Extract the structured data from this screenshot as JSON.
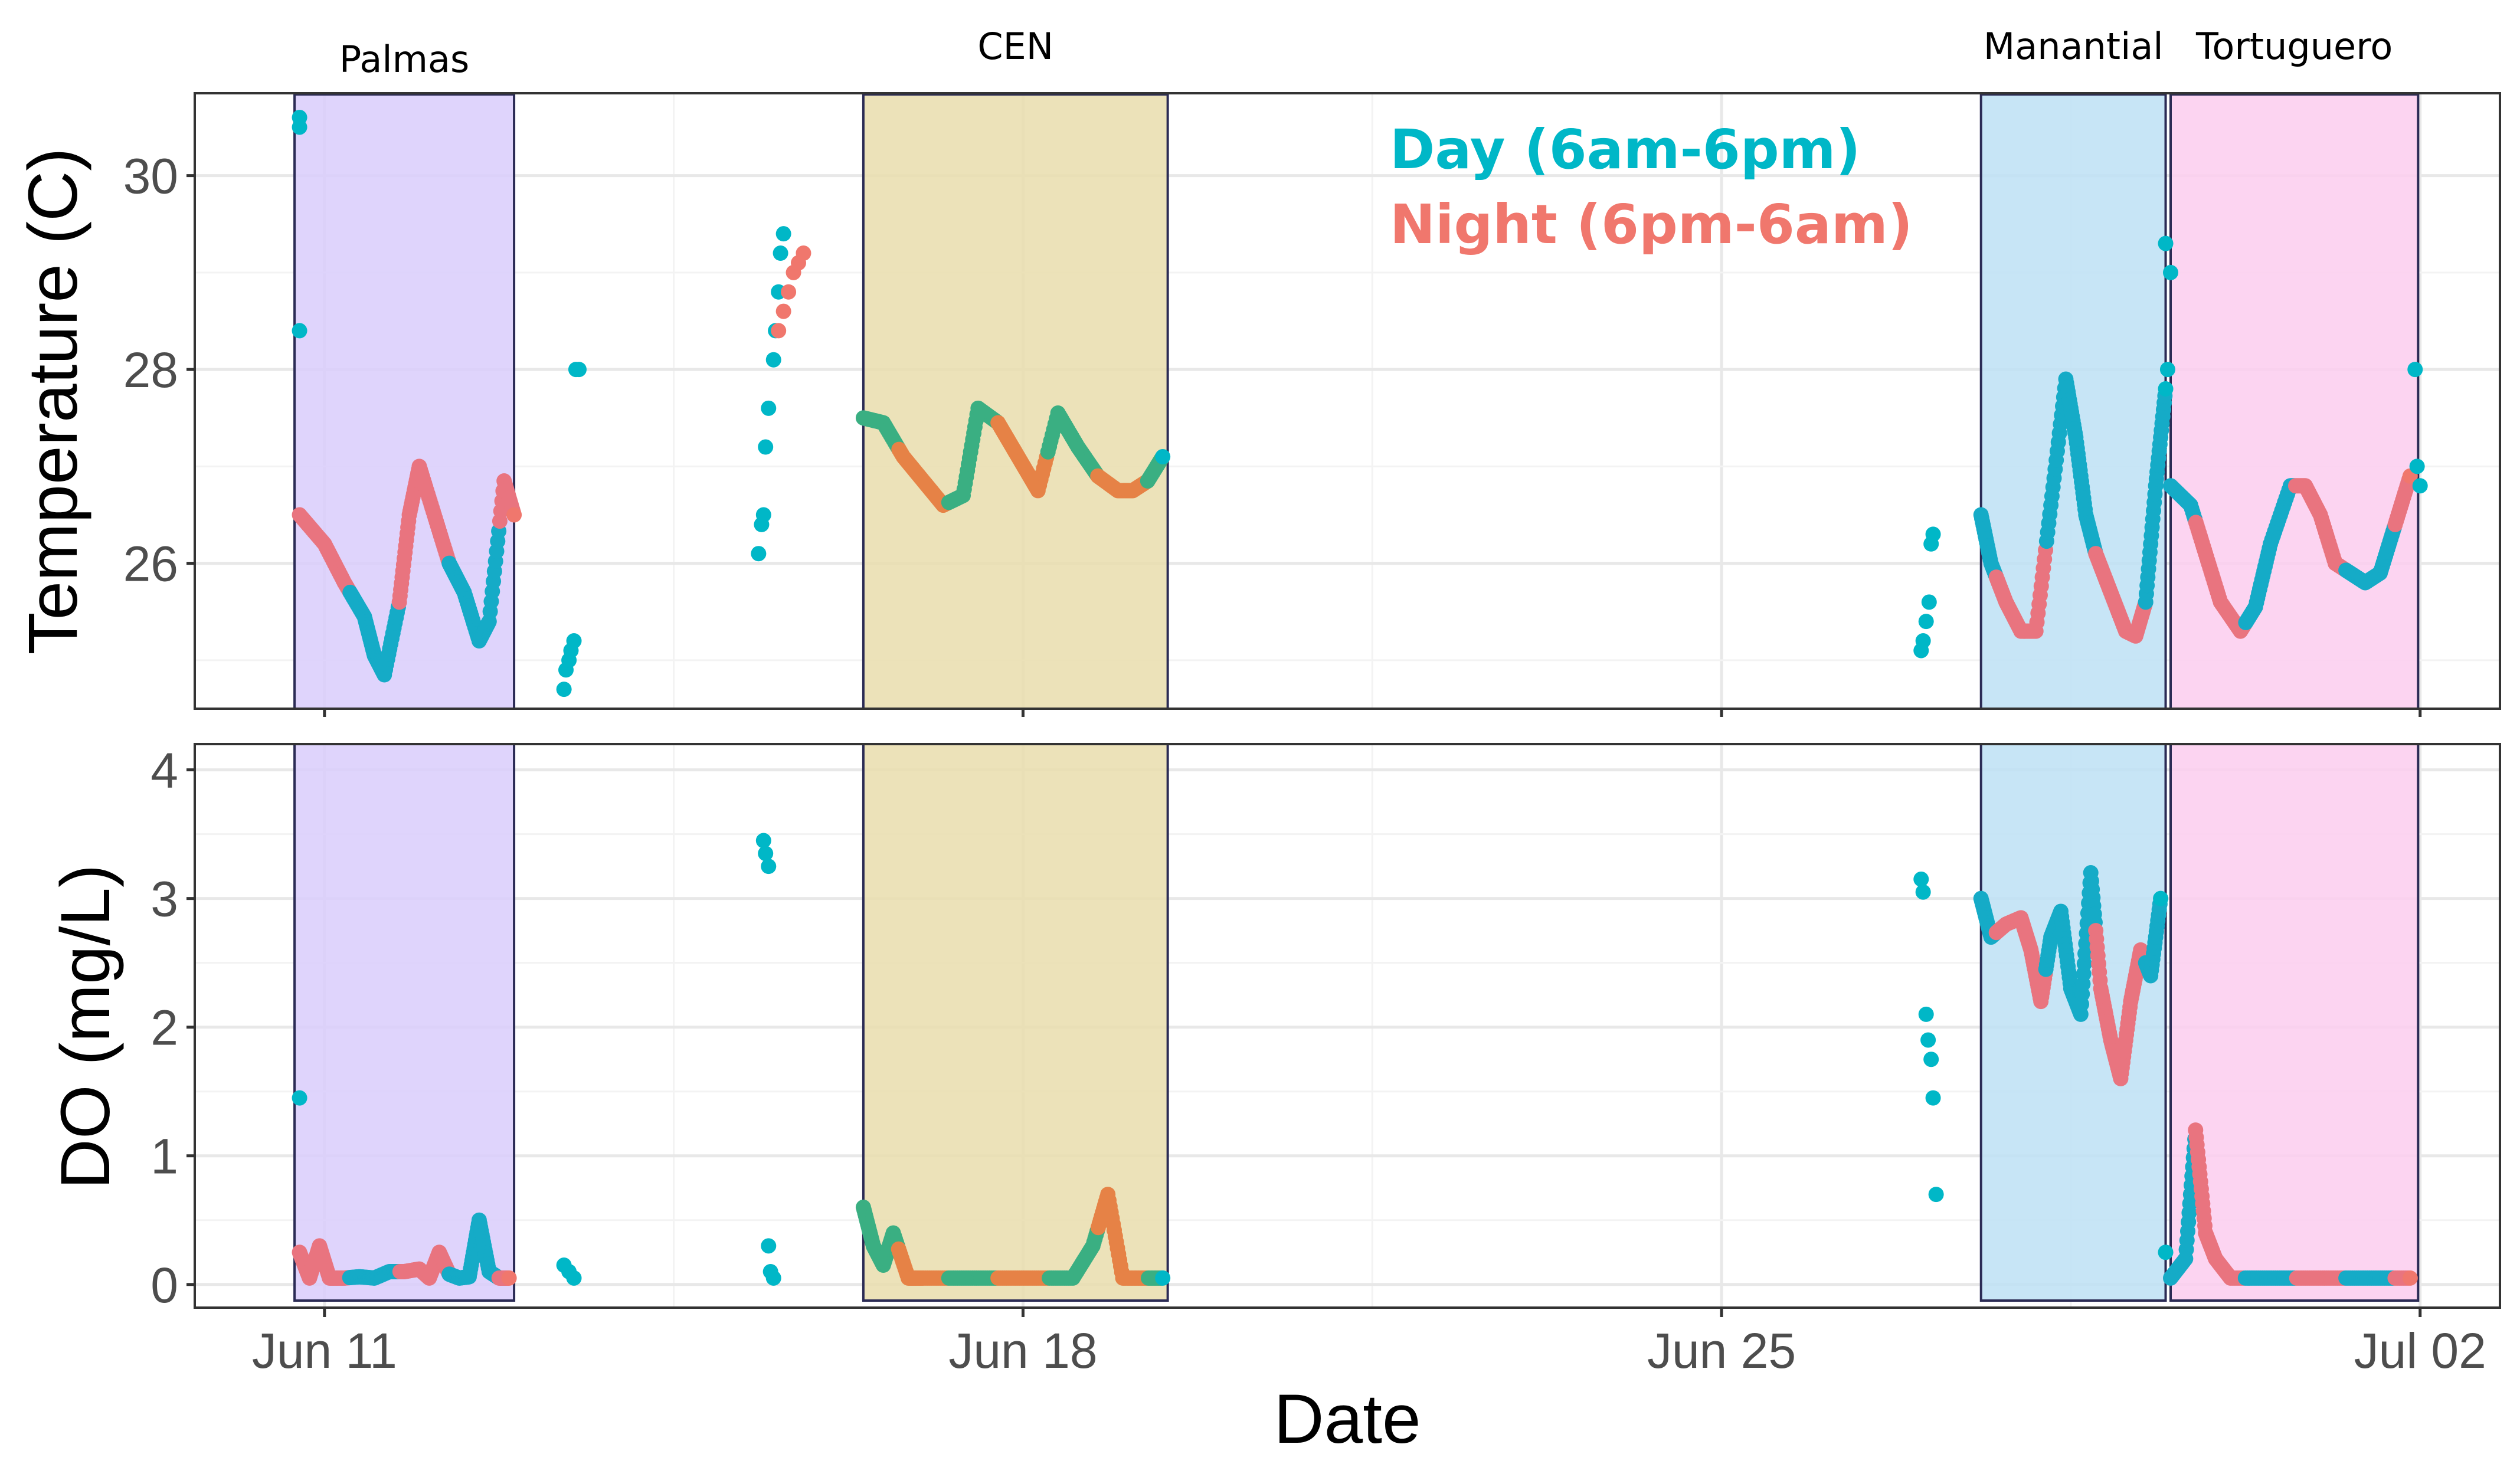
{
  "chart_data": {
    "type": "scatter",
    "xlabel": "Date",
    "x_ticks": [
      {
        "label": "Jun 11",
        "day": 11
      },
      {
        "label": "Jun 18",
        "day": 18
      },
      {
        "label": "Jun 25",
        "day": 25
      },
      {
        "label": "Jul 02",
        "day": 32
      }
    ],
    "xlim": [
      9.7,
      32.8
    ],
    "legend": [
      {
        "label": "Day (6am-6pm)",
        "color": "#00b7c7"
      },
      {
        "label": "Night (6pm-6am)",
        "color": "#f0776d"
      }
    ],
    "sites": [
      {
        "name": "Palmas",
        "start": 10.7,
        "end": 12.9,
        "color": "#d9ccfb"
      },
      {
        "name": "CEN",
        "start": 16.4,
        "end": 19.45,
        "color": "#e9ddad"
      },
      {
        "name": "Manantial",
        "start": 27.6,
        "end": 29.45,
        "color": "#bde1f5"
      },
      {
        "name": "Tortuguero",
        "start": 29.5,
        "end": 31.98,
        "color": "#fbcdef"
      }
    ],
    "panels": [
      {
        "id": "temperature",
        "ylabel": "Temperature (C)",
        "ylim": [
          24.5,
          30.85
        ],
        "y_ticks": [
          26,
          28,
          30
        ],
        "series": {
          "Palmas": {
            "x": [
              10.75,
              11.0,
              11.2,
              11.4,
              11.5,
              11.6,
              11.75,
              11.85,
              11.95,
              12.1,
              12.25,
              12.4,
              12.55,
              12.65,
              12.8,
              12.9
            ],
            "y": [
              26.5,
              26.2,
              25.8,
              25.45,
              25.05,
              24.85,
              25.6,
              26.5,
              27.0,
              26.5,
              26.0,
              25.7,
              25.2,
              25.4,
              26.85,
              26.5
            ]
          },
          "CEN": {
            "x": [
              16.4,
              16.6,
              16.8,
              17.0,
              17.2,
              17.4,
              17.55,
              17.75,
              17.95,
              18.15,
              18.35,
              18.55,
              18.75,
              18.95,
              19.1,
              19.25,
              19.4
            ],
            "y": [
              27.5,
              27.45,
              27.1,
              26.85,
              26.6,
              26.7,
              27.6,
              27.45,
              27.1,
              26.75,
              27.55,
              27.2,
              26.9,
              26.75,
              26.75,
              26.85,
              27.1
            ]
          },
          "Manantial": {
            "x": [
              27.6,
              27.7,
              27.85,
              28.0,
              28.15,
              28.3,
              28.45,
              28.55,
              28.65,
              28.75,
              28.9,
              29.05,
              29.15,
              29.25,
              29.35,
              29.45
            ],
            "y": [
              26.5,
              26.0,
              25.6,
              25.3,
              25.3,
              26.6,
              27.9,
              27.3,
              26.5,
              26.1,
              25.7,
              25.3,
              25.25,
              25.6,
              26.8,
              27.8
            ]
          },
          "Tortuguero": {
            "x": [
              29.5,
              29.7,
              29.85,
              30.0,
              30.2,
              30.35,
              30.5,
              30.7,
              30.85,
              31.0,
              31.15,
              31.3,
              31.45,
              31.6,
              31.75,
              31.9
            ],
            "y": [
              26.8,
              26.6,
              26.1,
              25.6,
              25.3,
              25.55,
              26.2,
              26.8,
              26.8,
              26.5,
              26.0,
              25.9,
              25.8,
              25.9,
              26.4,
              26.9
            ]
          },
          "outside_day": {
            "x": [
              10.75,
              10.75,
              10.75,
              13.4,
              13.42,
              13.45,
              13.47,
              13.5,
              13.52,
              13.55,
              15.35,
              15.38,
              15.4,
              15.42,
              15.45,
              15.5,
              15.52,
              15.55,
              15.57,
              15.6,
              27.0,
              27.02,
              27.05,
              27.08,
              27.1,
              27.12,
              29.45,
              29.47,
              29.5,
              31.95,
              31.97,
              32.0
            ],
            "y": [
              30.6,
              30.5,
              28.4,
              24.7,
              24.9,
              25.0,
              25.1,
              25.2,
              28.0,
              28.0,
              26.1,
              26.4,
              26.5,
              27.2,
              27.6,
              28.1,
              28.4,
              28.8,
              29.2,
              29.4,
              25.1,
              25.2,
              25.4,
              25.6,
              26.2,
              26.3,
              29.3,
              28.0,
              29.0,
              28.0,
              27.0,
              26.8
            ]
          },
          "outside_night": {
            "x": [
              15.55,
              15.6,
              15.65,
              15.7,
              15.75,
              15.8
            ],
            "y": [
              28.4,
              28.6,
              28.8,
              29.0,
              29.1,
              29.2
            ]
          }
        }
      },
      {
        "id": "do",
        "ylabel": "DO (mg/L)",
        "ylim": [
          -0.18,
          4.2
        ],
        "y_ticks": [
          0,
          1,
          2,
          3,
          4
        ],
        "series": {
          "Palmas": {
            "x": [
              10.75,
              10.85,
              10.95,
              11.05,
              11.2,
              11.35,
              11.5,
              11.65,
              11.8,
              11.95,
              12.05,
              12.15,
              12.25,
              12.35,
              12.45,
              12.55,
              12.65,
              12.75,
              12.85
            ],
            "y": [
              0.25,
              0.05,
              0.3,
              0.05,
              0.05,
              0.06,
              0.05,
              0.1,
              0.1,
              0.12,
              0.05,
              0.25,
              0.08,
              0.05,
              0.06,
              0.5,
              0.1,
              0.05,
              0.05
            ]
          },
          "CEN": {
            "x": [
              16.4,
              16.5,
              16.6,
              16.7,
              16.85,
              17.0,
              17.3,
              17.6,
              17.9,
              18.2,
              18.5,
              18.7,
              18.85,
              19.0,
              19.2,
              19.4
            ],
            "y": [
              0.6,
              0.3,
              0.15,
              0.4,
              0.05,
              0.05,
              0.05,
              0.05,
              0.05,
              0.05,
              0.05,
              0.3,
              0.7,
              0.05,
              0.05,
              0.05
            ]
          },
          "Manantial": {
            "x": [
              27.6,
              27.7,
              27.85,
              28.0,
              28.1,
              28.2,
              28.3,
              28.4,
              28.5,
              28.6,
              28.7,
              28.8,
              28.9,
              29.0,
              29.1,
              29.2,
              29.3,
              29.4
            ],
            "y": [
              3.0,
              2.7,
              2.8,
              2.85,
              2.6,
              2.2,
              2.7,
              2.9,
              2.3,
              2.1,
              3.2,
              2.3,
              1.9,
              1.6,
              2.2,
              2.6,
              2.4,
              3.0
            ]
          },
          "Tortuguero": {
            "x": [
              29.5,
              29.65,
              29.75,
              29.85,
              29.95,
              30.1,
              30.4,
              30.7,
              31.0,
              31.3,
              31.6,
              31.9
            ],
            "y": [
              0.05,
              0.2,
              1.2,
              0.4,
              0.2,
              0.05,
              0.05,
              0.05,
              0.05,
              0.05,
              0.05,
              0.05
            ]
          },
          "outside_day": {
            "x": [
              10.75,
              13.4,
              13.45,
              13.5,
              15.4,
              15.42,
              15.45,
              15.45,
              15.47,
              15.5,
              27.0,
              27.02,
              27.05,
              27.07,
              27.1,
              27.12,
              27.15,
              29.45
            ],
            "y": [
              1.45,
              0.15,
              0.1,
              0.05,
              3.45,
              3.35,
              3.25,
              0.3,
              0.1,
              0.05,
              3.15,
              3.05,
              2.1,
              1.9,
              1.75,
              1.45,
              0.7,
              0.25
            ]
          },
          "outside_night": {
            "x": [],
            "y": []
          }
        }
      }
    ]
  }
}
